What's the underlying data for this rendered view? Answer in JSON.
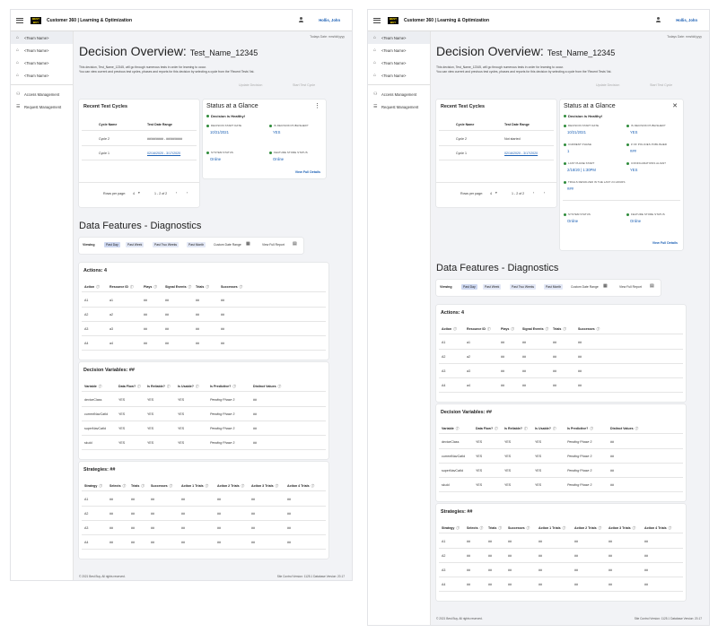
{
  "app": {
    "title": "Customer 360 | Learning & Optimization",
    "logo_text": "BEST BUY",
    "user": "Hollis, John"
  },
  "sidebar": {
    "team_items": [
      "<Team Name>",
      "<Team Name>",
      "<Team Name>",
      "<Team Name>"
    ],
    "access": "Access Management",
    "request": "Request Management"
  },
  "page": {
    "date": "Todays Date: mm/dd/yyyy",
    "title": "Decision Overview:",
    "test_name": "Test_Name_12345",
    "desc1": "This decision, Test_Name_12345, will go through numerous tests in order for learning to occur.",
    "desc2": "You can view current and previous test cycles, phases and reports for this decision by selecting a cycle from the 'Recent Tests' list.",
    "update_btn": "Update Decision",
    "start_btn": "Start Test Cycle"
  },
  "recent": {
    "title": "Recent Test Cycles",
    "col_name": "Cycle Name",
    "col_range": "Test Date Range",
    "rows_a": [
      {
        "name": "Cycle 2",
        "range": "##/##/#### - ##/##/####"
      },
      {
        "name": "Cycle 1",
        "range": "02/16/2020 - 3/17/2020"
      }
    ],
    "rows_b": [
      {
        "name": "Cycle 2",
        "range": "Not started"
      },
      {
        "name": "Cycle 1",
        "range": "02/16/2020 - 3/17/2020"
      }
    ],
    "pager_label": "Rows per page:",
    "pager_value": "4",
    "pager_range": "1 - 2 of 2",
    "pager_prev": "‹",
    "pager_next": "›"
  },
  "status": {
    "title": "Status at a Glance",
    "healthy": "Decision is Healthy!",
    "start_label": "DECISION START DATE",
    "start_value": "10/21/2021",
    "published_label": "IS DECISION PUBLISHED?",
    "published_value": "YES",
    "phase_label": "CURRENT PHASE",
    "phase_value": "1",
    "policies_label": "# OF POLICIES PUBLISHED",
    "policies_value": "###",
    "last_phase_label": "LAST PHASE START",
    "last_phase_value": "2/18/20 | 1:30PM",
    "config_label": "CONFIGURATIONS ALIGN?",
    "config_value": "YES",
    "trials_label": "TRIALS RESOLVED IN THE LAST 24 HOURS",
    "trials_value": "###",
    "system_label": "SYSTEM STATUS",
    "system_value": "Online",
    "feature_label": "FEATURE STORE STATUS",
    "feature_value": "Online",
    "view_details": "View Full Details",
    "menu_icon": "⋮",
    "close_icon": "✕"
  },
  "diagnostics": {
    "title": "Data Features - Diagnostics",
    "viewing": "Viewing",
    "chips": [
      "Past Day",
      "Past Week",
      "Past Two Weeks",
      "Past Month"
    ],
    "custom": "Custom Date Range",
    "view_report": "View Full Report"
  },
  "actions": {
    "title": "Actions: 4",
    "headers": [
      "Action",
      "Resource ID",
      "Plays",
      "Signal Events",
      "Trials",
      "Successes"
    ],
    "rows": [
      [
        "A1",
        "a1",
        "##",
        "##",
        "##",
        "##"
      ],
      [
        "A2",
        "a2",
        "##",
        "##",
        "##",
        "##"
      ],
      [
        "A3",
        "a3",
        "##",
        "##",
        "##",
        "##"
      ],
      [
        "A4",
        "a4",
        "##",
        "##",
        "##",
        "##"
      ]
    ]
  },
  "variables": {
    "title": "Decision Variables: ##",
    "headers": [
      "Variable",
      "Data Flow?",
      "Is Reliable?",
      "Is Usable?",
      "Is Predictive?",
      "Distinct Values"
    ],
    "rows": [
      [
        "deviceClass",
        "YES",
        "YES",
        "YES",
        "Pending Phase 3",
        "##"
      ],
      [
        "currentNavCatId",
        "YES",
        "YES",
        "YES",
        "Pending Phase 3",
        "##"
      ],
      [
        "superNavCatId",
        "YES",
        "YES",
        "YES",
        "Pending Phase 3",
        "##"
      ],
      [
        "skuId",
        "YES",
        "YES",
        "YES",
        "Pending Phase 3",
        "##"
      ]
    ]
  },
  "strategies": {
    "title": "Strategies: ##",
    "headers": [
      "Strategy",
      "Selects",
      "Trials",
      "Successes",
      "Action 1 Trials",
      "Action 2 Trials",
      "Action 3 Trials",
      "Action 4 Trials"
    ],
    "rows": [
      [
        "A1",
        "##",
        "##",
        "##",
        "##",
        "##",
        "##",
        "##"
      ],
      [
        "A2",
        "##",
        "##",
        "##",
        "##",
        "##",
        "##",
        "##"
      ],
      [
        "A3",
        "##",
        "##",
        "##",
        "##",
        "##",
        "##",
        "##"
      ],
      [
        "A4",
        "##",
        "##",
        "##",
        "##",
        "##",
        "##",
        "##"
      ]
    ]
  },
  "footer": {
    "copyright": "© 2021 Best Buy. All rights reserved.",
    "version": "Site Control Version: 1125.1 Database Version: 20.17"
  }
}
